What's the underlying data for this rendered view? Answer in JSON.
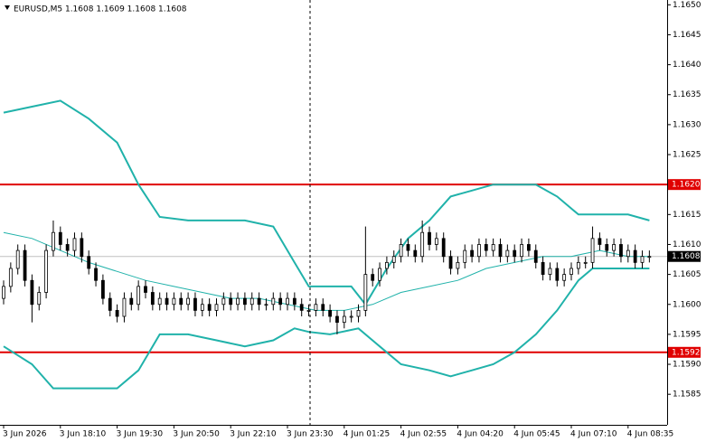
{
  "chart_data": {
    "type": "candlestick",
    "title": "EURUSD,M5  1.1608 1.1609 1.1608 1.1608",
    "ylim": [
      1.15799,
      1.16508
    ],
    "yticks": [
      {
        "value": 1.165,
        "label": "1.1650"
      },
      {
        "value": 1.1645,
        "label": "1.1645"
      },
      {
        "value": 1.164,
        "label": "1.1640"
      },
      {
        "value": 1.1635,
        "label": "1.1635"
      },
      {
        "value": 1.163,
        "label": "1.1630"
      },
      {
        "value": 1.1625,
        "label": "1.1625"
      },
      {
        "value": 1.1615,
        "label": "1.1615"
      },
      {
        "value": 1.161,
        "label": "1.1610"
      },
      {
        "value": 1.1605,
        "label": "1.1605"
      },
      {
        "value": 1.16,
        "label": "1.1600"
      },
      {
        "value": 1.1595,
        "label": "1.1595"
      },
      {
        "value": 1.159,
        "label": "1.1590"
      },
      {
        "value": 1.1585,
        "label": "1.1585"
      }
    ],
    "xticks": [
      {
        "value": 0,
        "label": "3 Jun 2026"
      },
      {
        "value": 8,
        "label": "3 Jun 18:10"
      },
      {
        "value": 16,
        "label": "3 Jun 19:30"
      },
      {
        "value": 24,
        "label": "3 Jun 20:50"
      },
      {
        "value": 32,
        "label": "3 Jun 22:10"
      },
      {
        "value": 40,
        "label": "3 Jun 23:30"
      },
      {
        "value": 48,
        "label": "4 Jun 01:25"
      },
      {
        "value": 56,
        "label": "4 Jun 02:55"
      },
      {
        "value": 64,
        "label": "4 Jun 04:20"
      },
      {
        "value": 72,
        "label": "4 Jun 05:45"
      },
      {
        "value": 80,
        "label": "4 Jun 07:10"
      },
      {
        "value": 88,
        "label": "4 Jun 08:35"
      }
    ],
    "grid": false,
    "open": [
      1.1601,
      1.1603,
      1.1606,
      1.1609,
      1.1604,
      1.16,
      1.1602,
      1.1609,
      1.1612,
      1.161,
      1.1609,
      1.1611,
      1.1608,
      1.1606,
      1.1604,
      1.1601,
      1.1599,
      1.1598,
      1.1601,
      1.16,
      1.1603,
      1.1602,
      1.16,
      1.1601,
      1.16,
      1.1601,
      1.16,
      1.1601,
      1.1599,
      1.16,
      1.1599,
      1.16,
      1.1601,
      1.16,
      1.1601,
      1.16,
      1.1601,
      1.16,
      1.16,
      1.1601,
      1.16,
      1.1601,
      1.16,
      1.1599,
      1.1599,
      1.16,
      1.1599,
      1.1598,
      1.1597,
      1.1598,
      1.1598,
      1.1599,
      1.1605,
      1.1604,
      1.1606,
      1.1607,
      1.1608,
      1.161,
      1.1609,
      1.1608,
      1.1612,
      1.161,
      1.1611,
      1.1608,
      1.1606,
      1.1607,
      1.1609,
      1.1608,
      1.161,
      1.1609,
      1.161,
      1.1608,
      1.1609,
      1.1608,
      1.161,
      1.1609,
      1.1607,
      1.1605,
      1.1606,
      1.1604,
      1.1605,
      1.1606,
      1.1607,
      1.1607,
      1.1611,
      1.161,
      1.1609,
      1.161,
      1.1608,
      1.1609,
      1.1607,
      1.1608
    ],
    "high": [
      1.1604,
      1.1607,
      1.161,
      1.161,
      1.1605,
      1.1603,
      1.161,
      1.1614,
      1.1613,
      1.1611,
      1.1612,
      1.1612,
      1.1609,
      1.1607,
      1.1605,
      1.1602,
      1.16,
      1.1602,
      1.1602,
      1.1604,
      1.1604,
      1.1603,
      1.1602,
      1.1602,
      1.1602,
      1.1602,
      1.1602,
      1.1602,
      1.1601,
      1.1601,
      1.1601,
      1.1602,
      1.1602,
      1.1602,
      1.1602,
      1.1602,
      1.1602,
      1.1601,
      1.1602,
      1.1602,
      1.1602,
      1.1602,
      1.1601,
      1.16,
      1.1601,
      1.1601,
      1.16,
      1.1599,
      1.1599,
      1.1599,
      1.16,
      1.1613,
      1.1606,
      1.1607,
      1.1608,
      1.1609,
      1.1611,
      1.1611,
      1.161,
      1.1614,
      1.1613,
      1.1612,
      1.1612,
      1.1609,
      1.1608,
      1.161,
      1.161,
      1.1611,
      1.1611,
      1.1611,
      1.1611,
      1.161,
      1.161,
      1.1611,
      1.1611,
      1.161,
      1.1608,
      1.1607,
      1.1607,
      1.1606,
      1.1607,
      1.1608,
      1.1608,
      1.1613,
      1.1612,
      1.1611,
      1.1611,
      1.1611,
      1.161,
      1.161,
      1.1609,
      1.1609
    ],
    "low": [
      1.16,
      1.1602,
      1.1605,
      1.1603,
      1.1597,
      1.1599,
      1.1601,
      1.1608,
      1.1609,
      1.1608,
      1.1608,
      1.1607,
      1.1605,
      1.1603,
      1.16,
      1.1598,
      1.1597,
      1.1597,
      1.1599,
      1.1599,
      1.1601,
      1.1599,
      1.1599,
      1.1599,
      1.1599,
      1.1599,
      1.1599,
      1.1598,
      1.1598,
      1.1598,
      1.1598,
      1.1599,
      1.1599,
      1.1599,
      1.1599,
      1.1599,
      1.1599,
      1.1599,
      1.1599,
      1.1599,
      1.1599,
      1.1599,
      1.1598,
      1.1598,
      1.1598,
      1.1598,
      1.1597,
      1.1595,
      1.1596,
      1.1597,
      1.1597,
      1.1598,
      1.1603,
      1.1603,
      1.1605,
      1.1606,
      1.1607,
      1.1608,
      1.1607,
      1.1607,
      1.1609,
      1.1609,
      1.1607,
      1.1605,
      1.1605,
      1.1606,
      1.1607,
      1.1607,
      1.1608,
      1.1608,
      1.1607,
      1.1607,
      1.1607,
      1.1607,
      1.1608,
      1.1606,
      1.1604,
      1.1604,
      1.1603,
      1.1603,
      1.1604,
      1.1605,
      1.1606,
      1.1606,
      1.1609,
      1.1608,
      1.1608,
      1.1607,
      1.1607,
      1.1606,
      1.1606,
      1.1607
    ],
    "close": [
      1.1603,
      1.1606,
      1.1609,
      1.1604,
      1.16,
      1.1602,
      1.1609,
      1.1612,
      1.161,
      1.1609,
      1.1611,
      1.1608,
      1.1606,
      1.1604,
      1.1601,
      1.1599,
      1.1598,
      1.1601,
      1.16,
      1.1603,
      1.1602,
      1.16,
      1.1601,
      1.16,
      1.1601,
      1.16,
      1.1601,
      1.1599,
      1.16,
      1.1599,
      1.16,
      1.1601,
      1.16,
      1.1601,
      1.16,
      1.1601,
      1.16,
      1.16,
      1.1601,
      1.16,
      1.1601,
      1.16,
      1.1599,
      1.1599,
      1.16,
      1.1599,
      1.1598,
      1.1597,
      1.1598,
      1.1598,
      1.1599,
      1.1605,
      1.1604,
      1.1606,
      1.1607,
      1.1608,
      1.161,
      1.1609,
      1.1608,
      1.1612,
      1.161,
      1.1611,
      1.1608,
      1.1606,
      1.1607,
      1.1609,
      1.1608,
      1.161,
      1.1609,
      1.161,
      1.1608,
      1.1609,
      1.1608,
      1.161,
      1.1609,
      1.1607,
      1.1605,
      1.1606,
      1.1604,
      1.1605,
      1.1606,
      1.1607,
      1.1607,
      1.1611,
      1.161,
      1.1609,
      1.161,
      1.1608,
      1.1609,
      1.1607,
      1.1608,
      1.1608
    ],
    "lines": [
      {
        "color": "#20b2aa",
        "width": 2,
        "x": [
          0,
          4,
          8,
          12,
          16,
          19,
          22,
          26,
          30,
          34,
          38,
          41,
          43,
          46,
          49,
          51,
          54,
          57,
          60,
          63,
          66,
          69,
          72,
          75,
          78,
          81,
          84,
          88,
          91
        ],
        "values": [
          1.1632,
          1.1633,
          1.1634,
          1.1631,
          1.1627,
          1.162,
          1.16146,
          1.1614,
          1.1614,
          1.1614,
          1.1613,
          1.1607,
          1.1603,
          1.1603,
          1.1603,
          1.16,
          1.1606,
          1.1611,
          1.1614,
          1.1618,
          1.1619,
          1.162,
          1.162,
          1.162,
          1.1618,
          1.1615,
          1.1615,
          1.1615,
          1.1614
        ]
      },
      {
        "color": "#20b2aa",
        "width": 2,
        "x": [
          0,
          4,
          7,
          12,
          16,
          19,
          22,
          26,
          30,
          34,
          38,
          41,
          43,
          46,
          50,
          53,
          56,
          60,
          63,
          66,
          69,
          72,
          75,
          78,
          81,
          83,
          87,
          91
        ],
        "values": [
          1.1593,
          1.159,
          1.1586,
          1.1586,
          1.1586,
          1.1589,
          1.1595,
          1.1595,
          1.1594,
          1.1593,
          1.1594,
          1.1596,
          1.15954,
          1.1595,
          1.1596,
          1.1593,
          1.159,
          1.1589,
          1.1588,
          1.1589,
          1.159,
          1.1592,
          1.1595,
          1.1599,
          1.1604,
          1.1606,
          1.1606,
          1.1606
        ]
      },
      {
        "color": "#20b2aa",
        "width": 1,
        "x": [
          0,
          4,
          8,
          12,
          16,
          20,
          24,
          28,
          32,
          36,
          40,
          44,
          48,
          52,
          56,
          60,
          64,
          68,
          72,
          76,
          80,
          84,
          88,
          91
        ],
        "values": [
          1.1612,
          1.1611,
          1.1609,
          1.1607,
          1.16055,
          1.1604,
          1.1603,
          1.1602,
          1.1601,
          1.1601,
          1.16,
          1.1599,
          1.1599,
          1.16,
          1.1602,
          1.1603,
          1.1604,
          1.1606,
          1.1607,
          1.1608,
          1.1608,
          1.1609,
          1.1608,
          1.1608
        ]
      }
    ],
    "levels": [
      {
        "value": 1.162,
        "label": "1.1620",
        "color": "#e00000"
      },
      {
        "value": 1.1592,
        "label": "1.1592",
        "color": "#e00000"
      }
    ],
    "last_price": {
      "value": 1.1608,
      "label": "1.1608"
    }
  }
}
